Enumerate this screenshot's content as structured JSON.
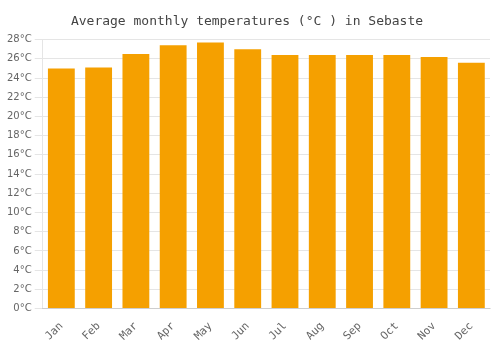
{
  "chart_data": {
    "type": "bar",
    "title": "Average monthly temperatures (°C ) in Sebaste",
    "categories": [
      "Jan",
      "Feb",
      "Mar",
      "Apr",
      "May",
      "Jun",
      "Jul",
      "Aug",
      "Sep",
      "Oct",
      "Nov",
      "Dec"
    ],
    "values": [
      25.0,
      25.1,
      26.5,
      27.4,
      27.7,
      27.0,
      26.4,
      26.4,
      26.4,
      26.4,
      26.2,
      25.6
    ],
    "color": "#F5A000",
    "ylim": [
      0,
      28
    ],
    "yticks": [
      {
        "value": 0,
        "label": "0°C"
      },
      {
        "value": 2,
        "label": "2°C"
      },
      {
        "value": 4,
        "label": "4°C"
      },
      {
        "value": 6,
        "label": "6°C"
      },
      {
        "value": 8,
        "label": "8°C"
      },
      {
        "value": 10,
        "label": "10°C"
      },
      {
        "value": 12,
        "label": "12°C"
      },
      {
        "value": 14,
        "label": "14°C"
      },
      {
        "value": 16,
        "label": "16°C"
      },
      {
        "value": 18,
        "label": "18°C"
      },
      {
        "value": 20,
        "label": "20°C"
      },
      {
        "value": 22,
        "label": "22°C"
      },
      {
        "value": 24,
        "label": "24°C"
      },
      {
        "value": 26,
        "label": "26°C"
      },
      {
        "value": 28,
        "label": "28°C"
      }
    ],
    "grid": true
  }
}
